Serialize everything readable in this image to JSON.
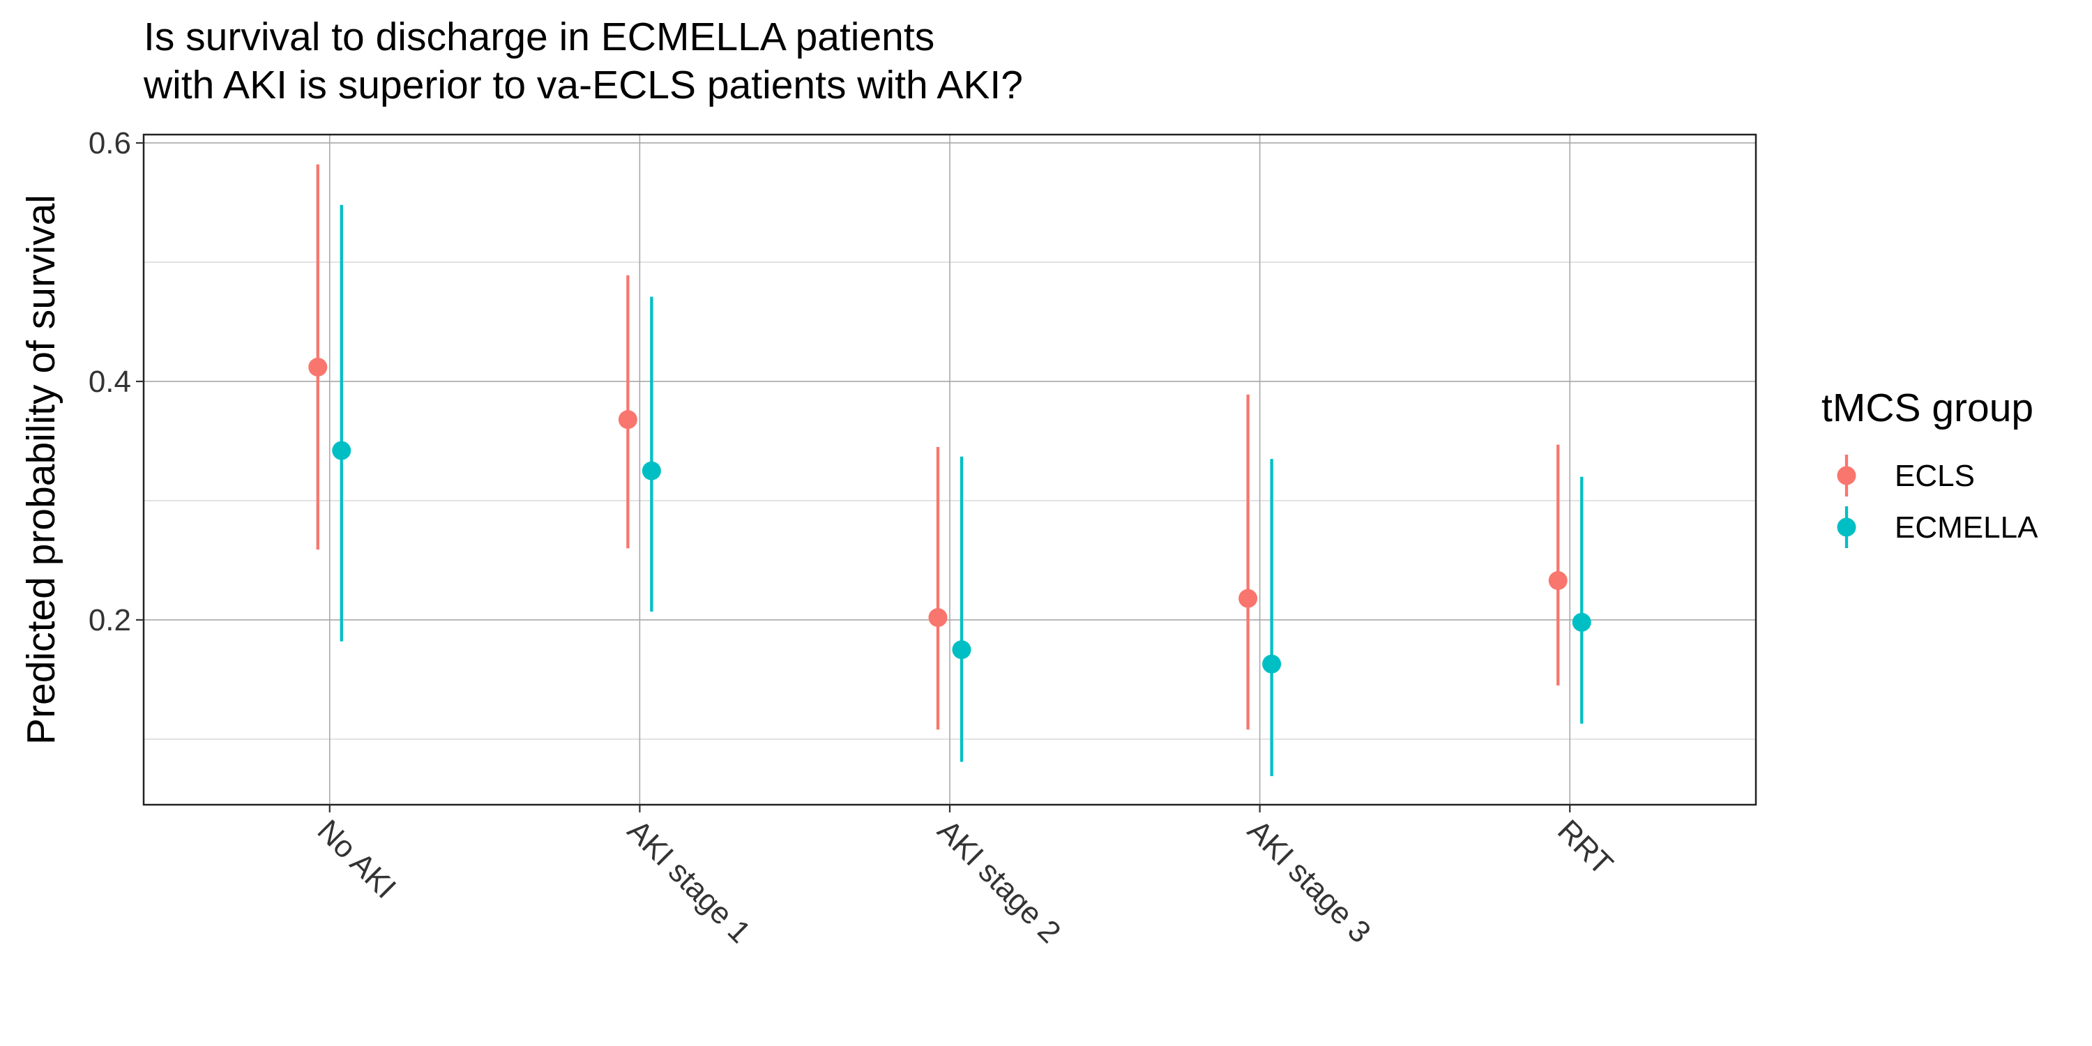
{
  "chart_data": {
    "type": "scatter",
    "subtype": "point-with-error-bars",
    "title": "Is survival to discharge in ECMELLA patients\nwith AKI is superior to va-ECLS patients with AKI?",
    "xlabel": "",
    "ylabel": "Predicted probability of survival",
    "categories": [
      "No AKI",
      "AKI stage 1",
      "AKI stage 2",
      "AKI stage 3",
      "RRT"
    ],
    "ylim": [
      0.045,
      0.607
    ],
    "yticks": [
      0.2,
      0.4,
      0.6
    ],
    "ytick_labels": [
      "0.2",
      "0.4",
      "0.6"
    ],
    "grid": true,
    "legend": {
      "title": "tMCS group",
      "position": "right"
    },
    "series": [
      {
        "name": "ECLS",
        "color": "#F8766D",
        "values": [
          0.412,
          0.368,
          0.202,
          0.218,
          0.233
        ],
        "lower": [
          0.259,
          0.26,
          0.108,
          0.108,
          0.145
        ],
        "upper": [
          0.582,
          0.489,
          0.345,
          0.389,
          0.347
        ]
      },
      {
        "name": "ECMELLA",
        "color": "#00BFC4",
        "values": [
          0.342,
          0.325,
          0.175,
          0.163,
          0.198
        ],
        "lower": [
          0.182,
          0.207,
          0.081,
          0.069,
          0.113
        ],
        "upper": [
          0.548,
          0.471,
          0.337,
          0.335,
          0.32
        ]
      }
    ]
  }
}
